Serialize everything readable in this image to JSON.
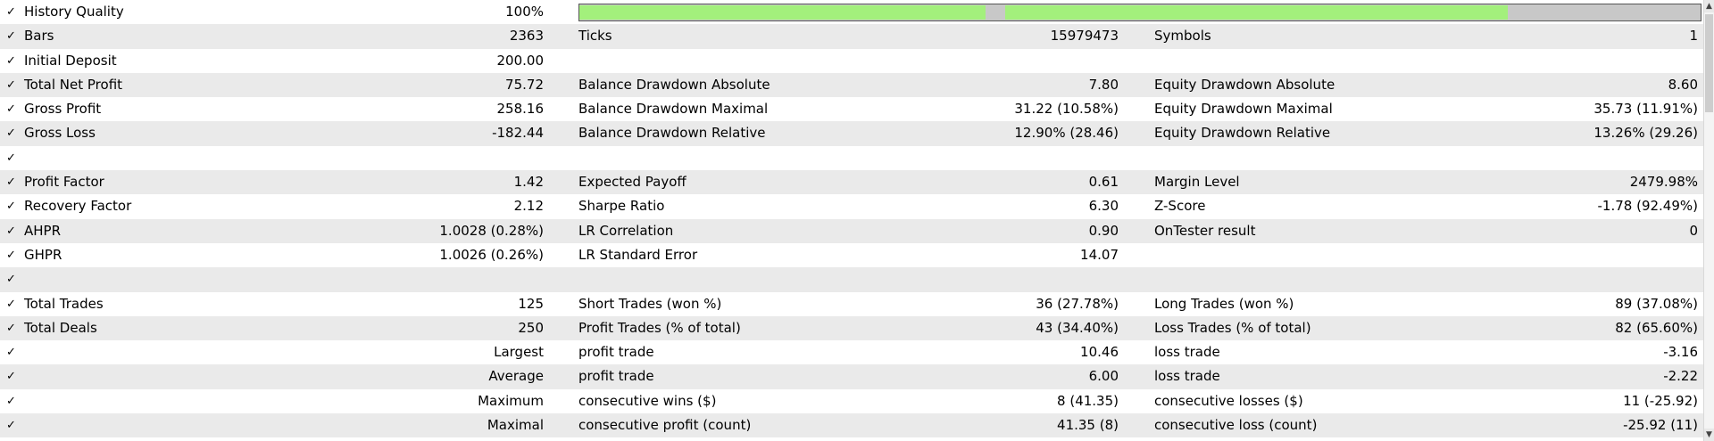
{
  "check_glyph": "✓",
  "colors": {
    "quality_fill": "#a3f07c",
    "quality_gap": "#c8c8c8",
    "row_alt": "#eaeaea"
  },
  "quality_bar": {
    "segments": [
      {
        "start": 0.0,
        "end": 0.362
      },
      {
        "start": 0.38,
        "end": 0.828
      }
    ]
  },
  "rows": [
    {
      "l1": "History Quality",
      "v1": "100%",
      "l2": "",
      "v2": "",
      "l3": "",
      "v3": "",
      "bar": true
    },
    {
      "l1": "Bars",
      "v1": "2363",
      "l2": "Ticks",
      "v2": "15979473",
      "l3": "Symbols",
      "v3": "1"
    },
    {
      "l1": "Initial Deposit",
      "v1": "200.00",
      "l2": "",
      "v2": "",
      "l3": "",
      "v3": ""
    },
    {
      "l1": "Total Net Profit",
      "v1": "75.72",
      "l2": "Balance Drawdown Absolute",
      "v2": "7.80",
      "l3": "Equity Drawdown Absolute",
      "v3": "8.60"
    },
    {
      "l1": "Gross Profit",
      "v1": "258.16",
      "l2": "Balance Drawdown Maximal",
      "v2": "31.22 (10.58%)",
      "l3": "Equity Drawdown Maximal",
      "v3": "35.73 (11.91%)"
    },
    {
      "l1": "Gross Loss",
      "v1": "-182.44",
      "l2": "Balance Drawdown Relative",
      "v2": "12.90% (28.46)",
      "l3": "Equity Drawdown Relative",
      "v3": "13.26% (29.26)"
    },
    {
      "l1": "",
      "v1": "",
      "l2": "",
      "v2": "",
      "l3": "",
      "v3": ""
    },
    {
      "l1": "Profit Factor",
      "v1": "1.42",
      "l2": "Expected Payoff",
      "v2": "0.61",
      "l3": "Margin Level",
      "v3": "2479.98%"
    },
    {
      "l1": "Recovery Factor",
      "v1": "2.12",
      "l2": "Sharpe Ratio",
      "v2": "6.30",
      "l3": "Z-Score",
      "v3": "-1.78 (92.49%)"
    },
    {
      "l1": "AHPR",
      "v1": "1.0028 (0.28%)",
      "l2": "LR Correlation",
      "v2": "0.90",
      "l3": "OnTester result",
      "v3": "0"
    },
    {
      "l1": "GHPR",
      "v1": "1.0026 (0.26%)",
      "l2": "LR Standard Error",
      "v2": "14.07",
      "l3": "",
      "v3": ""
    },
    {
      "l1": "",
      "v1": "",
      "l2": "",
      "v2": "",
      "l3": "",
      "v3": ""
    },
    {
      "l1": "Total Trades",
      "v1": "125",
      "l2": "Short Trades (won %)",
      "v2": "36 (27.78%)",
      "l3": "Long Trades (won %)",
      "v3": "89 (37.08%)"
    },
    {
      "l1": "Total Deals",
      "v1": "250",
      "l2": "Profit Trades (% of total)",
      "v2": "43 (34.40%)",
      "l3": "Loss Trades (% of total)",
      "v3": "82 (65.60%)"
    },
    {
      "l1": "",
      "v1": "Largest",
      "l2": "profit trade",
      "v2": "10.46",
      "l3": "loss trade",
      "v3": "-3.16"
    },
    {
      "l1": "",
      "v1": "Average",
      "l2": "profit trade",
      "v2": "6.00",
      "l3": "loss trade",
      "v3": "-2.22"
    },
    {
      "l1": "",
      "v1": "Maximum",
      "l2": "consecutive wins ($)",
      "v2": "8 (41.35)",
      "l3": "consecutive losses ($)",
      "v3": "11 (-25.92)"
    },
    {
      "l1": "",
      "v1": "Maximal",
      "l2": "consecutive profit (count)",
      "v2": "41.35 (8)",
      "l3": "consecutive loss (count)",
      "v3": "-25.92 (11)"
    }
  ]
}
